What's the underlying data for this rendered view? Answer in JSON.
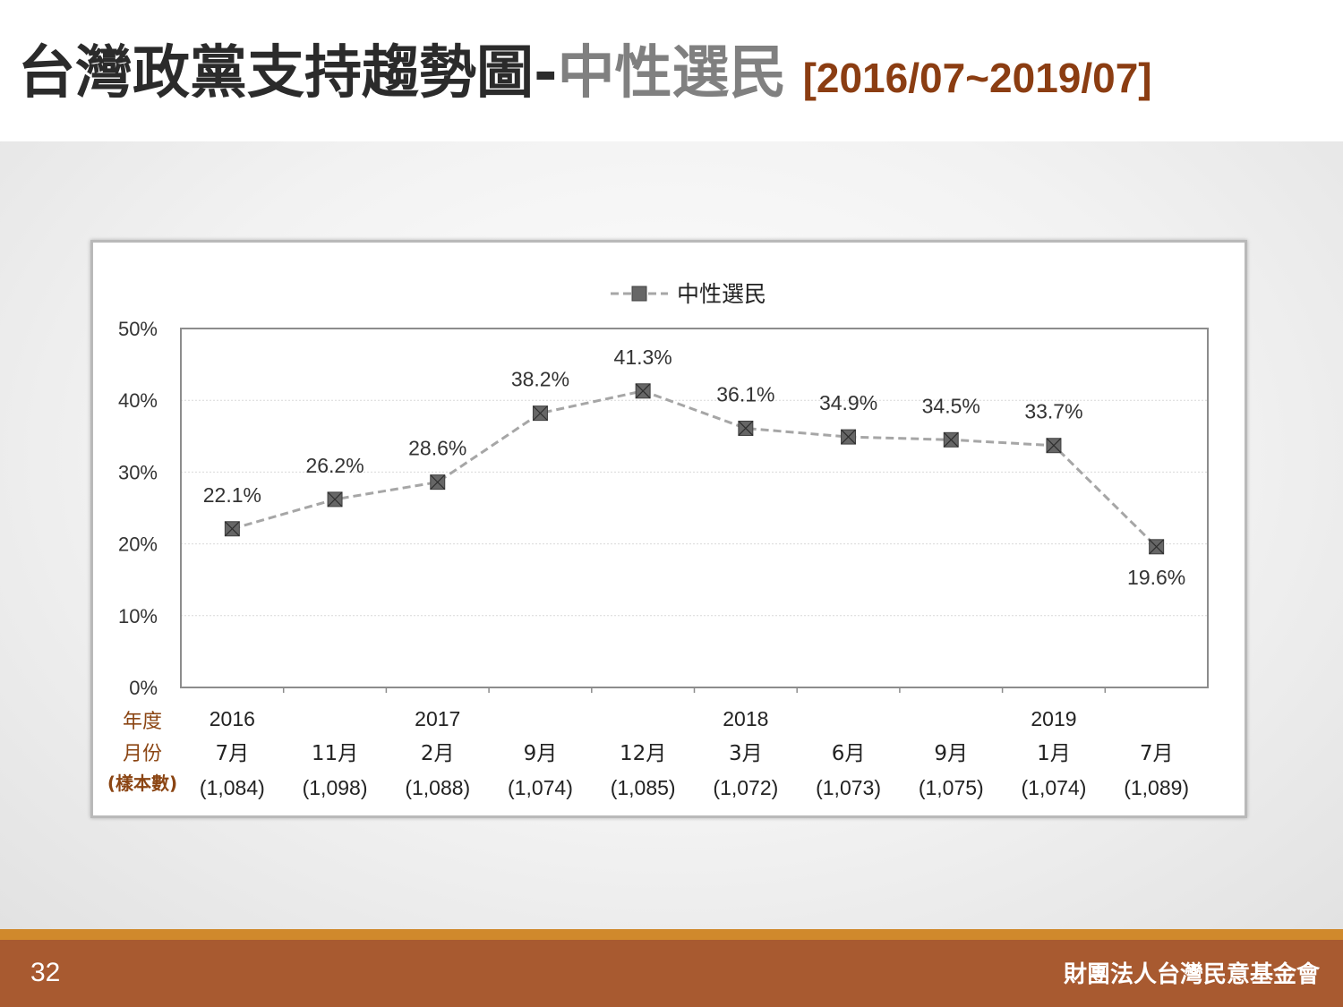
{
  "header": {
    "title_main": "台灣政黨支持趨勢圖",
    "title_dash": "-",
    "title_sub": "中性選民",
    "title_range": "[2016/07~2019/07]"
  },
  "footer": {
    "page_number": "32",
    "organization": "財團法人台灣民意基金會"
  },
  "colors": {
    "line": "#a6a6a6",
    "marker": "#666666",
    "row_label": "#8b4513",
    "footer": "#a85a30",
    "footer_line": "#d0892c"
  },
  "chart_data": {
    "type": "line",
    "legend": {
      "position": "top-center",
      "entries": [
        "中性選民"
      ]
    },
    "row_labels": {
      "year": "年度",
      "month": "月份",
      "sample": "(樣本數)"
    },
    "categories": [
      {
        "year": "2016",
        "month": "7月",
        "sample": "(1,084)"
      },
      {
        "year": "",
        "month": "11月",
        "sample": "(1,098)"
      },
      {
        "year": "2017",
        "month": "2月",
        "sample": "(1,088)"
      },
      {
        "year": "",
        "month": "9月",
        "sample": "(1,074)"
      },
      {
        "year": "",
        "month": "12月",
        "sample": "(1,085)"
      },
      {
        "year": "2018",
        "month": "3月",
        "sample": "(1,072)"
      },
      {
        "year": "",
        "month": "6月",
        "sample": "(1,073)"
      },
      {
        "year": "",
        "month": "9月",
        "sample": "(1,075)"
      },
      {
        "year": "2019",
        "month": "1月",
        "sample": "(1,074)"
      },
      {
        "year": "",
        "month": "7月",
        "sample": "(1,089)"
      }
    ],
    "series": [
      {
        "name": "中性選民",
        "values": [
          22.1,
          26.2,
          28.6,
          38.2,
          41.3,
          36.1,
          34.9,
          34.5,
          33.7,
          19.6
        ],
        "labels": [
          "22.1%",
          "26.2%",
          "28.6%",
          "38.2%",
          "41.3%",
          "36.1%",
          "34.9%",
          "34.5%",
          "33.7%",
          "19.6%"
        ]
      }
    ],
    "ylim": [
      0,
      50
    ],
    "yticks": [
      0,
      10,
      20,
      30,
      40,
      50
    ],
    "ytick_labels": [
      "0%",
      "10%",
      "20%",
      "30%",
      "40%",
      "50%"
    ],
    "grid": true
  }
}
